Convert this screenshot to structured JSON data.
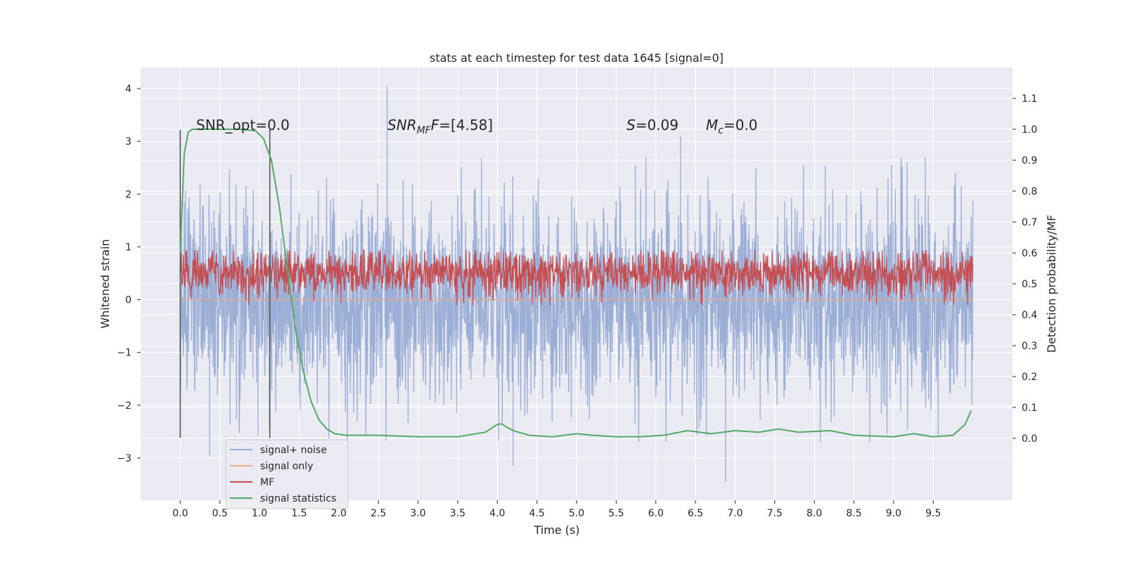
{
  "chart_data": {
    "type": "line",
    "title": "stats at each timestep for test data 1645 [signal=0]",
    "xlabel": "Time (s)",
    "ylabel": "Whitened strain",
    "ylabel_right": "Detection probability/MF",
    "xlim": [
      -0.5,
      10.5
    ],
    "ylim": [
      -3.8,
      4.4
    ],
    "ylim_right": [
      -0.2,
      1.2
    ],
    "x_ticks": [
      0.0,
      0.5,
      1.0,
      1.5,
      2.0,
      2.5,
      3.0,
      3.5,
      4.0,
      4.5,
      5.0,
      5.5,
      6.0,
      6.5,
      7.0,
      7.5,
      8.0,
      8.5,
      9.0,
      9.5
    ],
    "x_tick_labels": [
      "0.0",
      "0.5",
      "1.0",
      "1.5",
      "2.0",
      "2.5",
      "3.0",
      "3.5",
      "4.0",
      "4.5",
      "5.0",
      "5.5",
      "6.0",
      "6.5",
      "7.0",
      "7.5",
      "8.0",
      "8.5",
      "9.0",
      "9.5"
    ],
    "y_ticks": [
      -3,
      -2,
      -1,
      0,
      1,
      2,
      3,
      4
    ],
    "y_tick_labels": [
      "−3",
      "−2",
      "−1",
      "0",
      "1",
      "2",
      "3",
      "4"
    ],
    "y_ticks_right": [
      0.0,
      0.1,
      0.2,
      0.3,
      0.4,
      0.5,
      0.6,
      0.7,
      0.8,
      0.9,
      1.0,
      1.1
    ],
    "y_tick_labels_right": [
      "0.0",
      "0.1",
      "0.2",
      "0.3",
      "0.4",
      "0.5",
      "0.6",
      "0.7",
      "0.8",
      "0.9",
      "1.0",
      "1.1"
    ],
    "grid": true,
    "legend_placement": "lower-left",
    "annotations": {
      "snr_opt": "SNR_opt=0.0",
      "snr_mf_main": "SNR",
      "snr_mf_sub": "MF",
      "snr_mf_rest": "=[4.58]",
      "s_label": "S",
      "s_rest": "=0.09",
      "mc_main": "M",
      "mc_sub": "c",
      "mc_rest": "=0.0"
    },
    "markers": [
      {
        "x": 0.0,
        "y_range": [
          -2.62,
          3.22
        ]
      },
      {
        "x": 1.13,
        "y_range": [
          -2.62,
          3.22
        ]
      }
    ],
    "series": [
      {
        "name": "signal+ noise",
        "color": "#97abd3",
        "kind": "noise",
        "t_range": [
          0.0,
          10.0
        ],
        "typical_range": [
          -2.4,
          2.4
        ],
        "peak_max": 4.04,
        "peak_min": -3.45
      },
      {
        "name": "signal only",
        "color": "#e8a98c",
        "kind": "flat",
        "t_range": [
          0.0,
          10.0
        ],
        "value": 0.0
      },
      {
        "name": "MF",
        "color": "#c44e52",
        "kind": "mf",
        "axis": "right",
        "t_range": [
          0.0,
          10.0
        ],
        "typical_range": [
          0.45,
          0.62
        ],
        "peak_max": 0.61
      },
      {
        "name": "signal statistics",
        "color": "#55a868",
        "kind": "curve",
        "axis": "right",
        "x": [
          0.0,
          0.05,
          0.1,
          0.15,
          0.25,
          0.5,
          0.75,
          0.95,
          1.05,
          1.15,
          1.25,
          1.35,
          1.45,
          1.55,
          1.65,
          1.75,
          1.85,
          1.95,
          2.1,
          2.5,
          3.0,
          3.5,
          3.85,
          4.0,
          4.05,
          4.2,
          4.4,
          4.7,
          5.0,
          5.2,
          5.5,
          5.8,
          6.1,
          6.4,
          6.7,
          7.0,
          7.3,
          7.55,
          7.8,
          8.2,
          8.5,
          9.0,
          9.25,
          9.5,
          9.75,
          9.9,
          9.98
        ],
        "y": [
          0.6,
          0.92,
          0.99,
          1.0,
          1.0,
          1.0,
          1.0,
          0.995,
          0.97,
          0.9,
          0.75,
          0.55,
          0.36,
          0.22,
          0.12,
          0.06,
          0.03,
          0.015,
          0.01,
          0.01,
          0.005,
          0.005,
          0.02,
          0.045,
          0.047,
          0.025,
          0.01,
          0.005,
          0.015,
          0.01,
          0.005,
          0.005,
          0.01,
          0.025,
          0.015,
          0.025,
          0.02,
          0.03,
          0.02,
          0.025,
          0.01,
          0.005,
          0.015,
          0.005,
          0.01,
          0.045,
          0.09
        ]
      }
    ]
  }
}
